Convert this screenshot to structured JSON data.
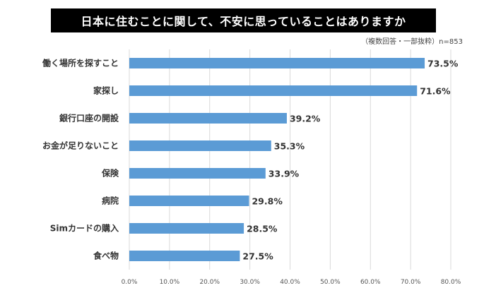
{
  "chart_data": {
    "type": "bar",
    "orientation": "horizontal",
    "title": "日本に住むことに関して、不安に思っていることはありますか",
    "subtitle": "（複数回答・一部抜粋）n=853",
    "categories": [
      "働く場所を探すこと",
      "家探し",
      "銀行口座の開設",
      "お金が足りないこと",
      "保険",
      "病院",
      "Simカードの購入",
      "食べ物"
    ],
    "values": [
      73.5,
      71.6,
      39.2,
      35.3,
      33.9,
      29.8,
      28.5,
      27.5
    ],
    "value_labels": [
      "73.5%",
      "71.6%",
      "39.2%",
      "35.3%",
      "33.9%",
      "29.8%",
      "28.5%",
      "27.5%"
    ],
    "xlim": [
      0,
      80
    ],
    "ticks": [
      "0.0%",
      "10.0%",
      "20.0%",
      "30.0%",
      "40.0%",
      "50.0%",
      "60.0%",
      "70.0%",
      "80.0%"
    ],
    "grid": true,
    "bar_color": "#5b9bd5"
  }
}
